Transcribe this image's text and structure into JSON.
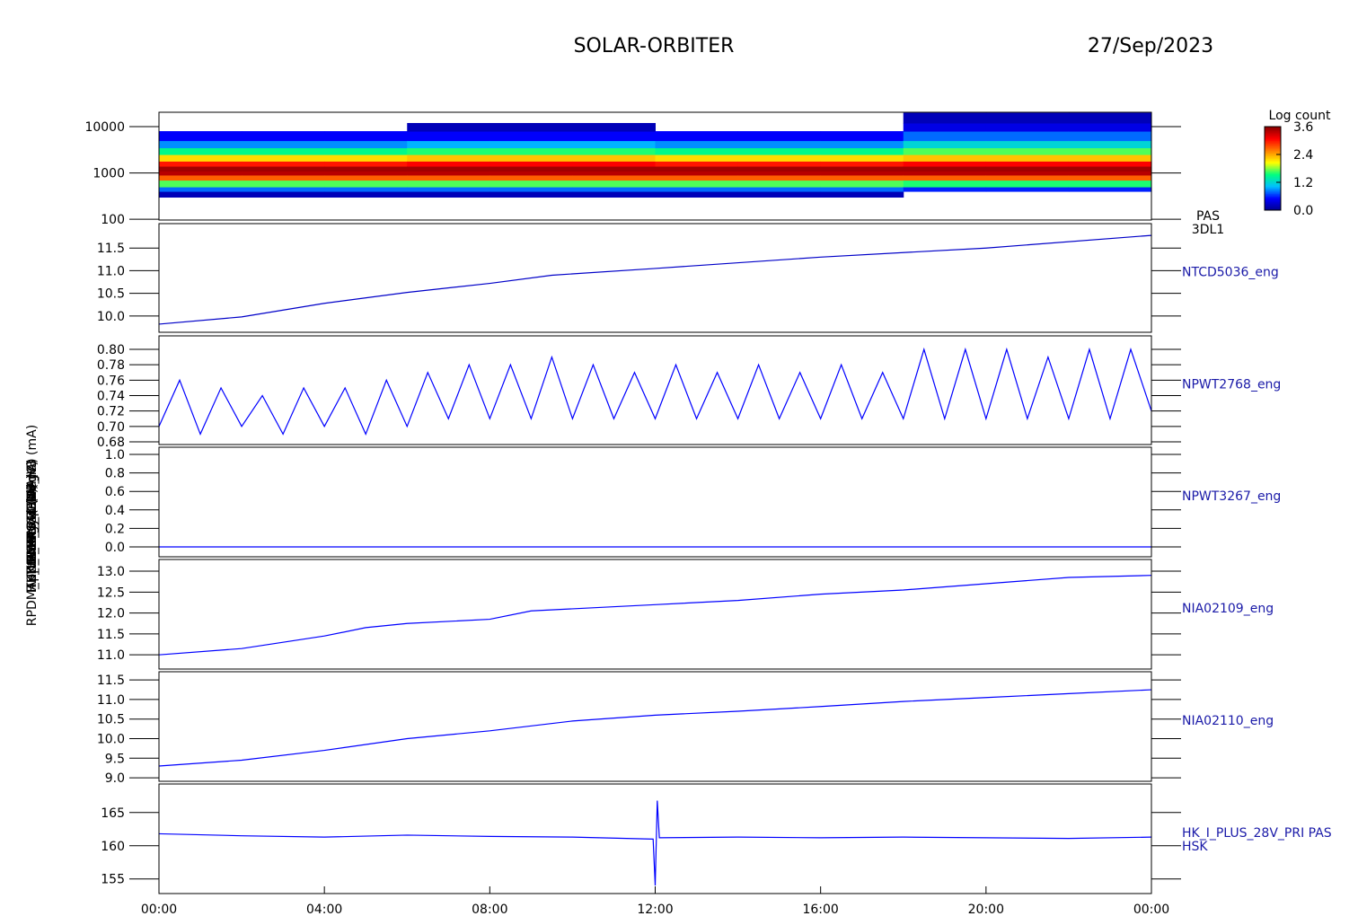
{
  "title": "SOLAR-ORBITER",
  "date": "27/Sep/2023",
  "chart_data": [
    {
      "type": "heatmap",
      "label": [
        "PAS",
        "3DL1"
      ],
      "ylabel": "Energy (eV)",
      "ylog": true,
      "xlim": [
        0,
        24
      ],
      "ylim": [
        96,
        20500
      ],
      "yticks": [
        100,
        1000,
        10000
      ],
      "x_edges": [
        0,
        2,
        4,
        6,
        8,
        10,
        12,
        14,
        16,
        18,
        20,
        22,
        24
      ],
      "y_edges": [
        300,
        400,
        500,
        700,
        900,
        1100,
        1400,
        1800,
        2500,
        3500,
        5000,
        8000,
        12000,
        20000
      ],
      "z": [
        [
          0.2,
          0.8,
          1.7,
          2.7,
          3.4,
          3.5,
          3.0,
          2.2,
          1.5,
          0.9,
          0.5,
          null,
          null
        ],
        [
          0.2,
          0.8,
          1.7,
          2.7,
          3.4,
          3.5,
          3.0,
          2.2,
          1.5,
          0.9,
          0.5,
          null,
          null
        ],
        [
          0.2,
          0.8,
          1.7,
          2.7,
          3.4,
          3.5,
          3.0,
          2.2,
          1.5,
          0.9,
          0.5,
          null,
          null
        ],
        [
          0.2,
          0.8,
          1.7,
          2.7,
          3.4,
          3.5,
          3.1,
          2.3,
          1.6,
          1.0,
          0.5,
          0.2,
          null
        ],
        [
          0.2,
          0.8,
          1.7,
          2.7,
          3.4,
          3.5,
          3.1,
          2.3,
          1.6,
          1.0,
          0.5,
          0.2,
          null
        ],
        [
          0.2,
          0.8,
          1.7,
          2.7,
          3.4,
          3.5,
          3.1,
          2.3,
          1.6,
          1.0,
          0.5,
          0.2,
          null
        ],
        [
          0.2,
          0.8,
          1.7,
          2.7,
          3.4,
          3.5,
          3.0,
          2.2,
          1.5,
          0.9,
          0.5,
          null,
          null
        ],
        [
          0.2,
          0.8,
          1.7,
          2.7,
          3.4,
          3.5,
          3.0,
          2.2,
          1.5,
          0.9,
          0.5,
          null,
          null
        ],
        [
          0.2,
          0.8,
          1.7,
          2.7,
          3.4,
          3.5,
          3.0,
          2.2,
          1.5,
          0.9,
          0.5,
          null,
          null
        ],
        [
          null,
          0.6,
          1.6,
          2.7,
          3.4,
          3.5,
          3.1,
          2.3,
          1.7,
          1.2,
          0.8,
          0.4,
          0.2
        ],
        [
          null,
          0.6,
          1.6,
          2.7,
          3.4,
          3.5,
          3.1,
          2.3,
          1.7,
          1.2,
          0.8,
          0.4,
          0.2
        ],
        [
          null,
          0.6,
          1.6,
          2.7,
          3.4,
          3.5,
          3.1,
          2.3,
          1.7,
          1.2,
          0.8,
          0.4,
          0.2
        ]
      ],
      "colorbar_title": "Log count",
      "clim": [
        0,
        3.6
      ],
      "cticks": [
        {
          "value": 0,
          "label": "0.0"
        },
        1.2,
        2.4,
        3.6
      ],
      "colorscale": [
        "#00008b",
        "#0000ff",
        "#00bfff",
        "#00ff80",
        "#ffff00",
        "#ff8000",
        "#ff0000",
        "#8b0000"
      ]
    },
    {
      "type": "line",
      "label": [
        "NTCD5036_eng"
      ],
      "ylabel": "Approx Temp (DegC)",
      "color": "#0000c8",
      "xlim": [
        0,
        24
      ],
      "ylim": [
        9.64,
        12.04
      ],
      "yticks": [
        {
          "value": 10,
          "label": "10.0"
        },
        10.5,
        {
          "value": 11,
          "label": "11.0"
        },
        11.5
      ],
      "x": [
        0,
        2,
        4,
        6,
        8,
        9.5,
        12,
        16,
        20,
        24
      ],
      "values": [
        9.82,
        9.98,
        10.28,
        10.52,
        10.72,
        10.9,
        11.05,
        11.3,
        11.5,
        11.78
      ]
    },
    {
      "type": "line",
      "label": [
        "NPWT2768_eng"
      ],
      "ylabel": "TSWA_EAS_TEMP (V)",
      "color": "#0000ff",
      "xlim": [
        0,
        24
      ],
      "ylim": [
        0.6765,
        0.8175
      ],
      "yticks": [
        0.68,
        {
          "value": 0.7,
          "label": "0.70"
        },
        0.72,
        0.74,
        0.76,
        0.78,
        {
          "value": 0.8,
          "label": "0.80"
        }
      ],
      "x": [
        0,
        0.5,
        1,
        1.5,
        2,
        2.5,
        3,
        3.5,
        4,
        4.5,
        5,
        5.5,
        6,
        6.5,
        7,
        7.5,
        8,
        8.5,
        9,
        9.5,
        10,
        10.5,
        11,
        11.5,
        12,
        12.5,
        13,
        13.5,
        14,
        14.5,
        15,
        15.5,
        16,
        16.5,
        17,
        17.5,
        18,
        18.5,
        19,
        19.5,
        20,
        20.5,
        21,
        21.5,
        22,
        22.5,
        23,
        23.5,
        24
      ],
      "values": [
        0.7,
        0.76,
        0.69,
        0.75,
        0.7,
        0.74,
        0.69,
        0.75,
        0.7,
        0.75,
        0.69,
        0.76,
        0.7,
        0.77,
        0.71,
        0.78,
        0.71,
        0.78,
        0.71,
        0.79,
        0.71,
        0.78,
        0.71,
        0.77,
        0.71,
        0.78,
        0.71,
        0.77,
        0.71,
        0.78,
        0.71,
        0.77,
        0.71,
        0.78,
        0.71,
        0.77,
        0.71,
        0.8,
        0.71,
        0.8,
        0.71,
        0.8,
        0.71,
        0.79,
        0.71,
        0.8,
        0.71,
        0.8,
        0.72
      ]
    },
    {
      "type": "line",
      "label": [
        "NPWT3267_eng"
      ],
      "ylabel": "SWA_CAL (V)",
      "color": "#0000ff",
      "xlim": [
        0,
        24
      ],
      "ylim": [
        -0.107,
        1.078
      ],
      "yticks": [
        {
          "value": 0,
          "label": "0.0"
        },
        0.2,
        0.4,
        0.6,
        0.8,
        {
          "value": 1,
          "label": "1.0"
        }
      ],
      "x": [
        0,
        24
      ],
      "values": [
        0,
        0
      ]
    },
    {
      "type": "line",
      "label": [
        "NIA02109_eng"
      ],
      "ylabel": "THERM_C4 (mA)",
      "color": "#0000ff",
      "xlim": [
        0,
        24
      ],
      "ylim": [
        10.66,
        13.28
      ],
      "yticks": [
        {
          "value": 11,
          "label": "11.0"
        },
        11.5,
        {
          "value": 12,
          "label": "12.0"
        },
        12.5,
        {
          "value": 13,
          "label": "13.0"
        }
      ],
      "x": [
        0,
        2,
        4,
        5,
        6,
        8,
        9,
        10,
        12,
        14,
        16,
        18,
        20,
        22,
        24
      ],
      "values": [
        11.0,
        11.15,
        11.45,
        11.65,
        11.75,
        11.85,
        12.05,
        12.1,
        12.2,
        12.3,
        12.45,
        12.55,
        12.7,
        12.85,
        12.9
      ]
    },
    {
      "type": "line",
      "label": [
        "NIA02110_eng"
      ],
      "ylabel": "HK_IMON_PCDU (mA)",
      "color": "#0000ff",
      "xlim": [
        0,
        24
      ],
      "ylim": [
        8.91,
        11.71
      ],
      "yticks": [
        {
          "value": 9,
          "label": "9.0"
        },
        9.5,
        {
          "value": 10,
          "label": "10.0"
        },
        10.5,
        {
          "value": 11,
          "label": "11.0"
        },
        11.5
      ],
      "x": [
        0,
        2,
        4,
        6,
        8,
        10,
        12,
        14,
        16,
        18,
        20,
        22,
        24
      ],
      "values": [
        9.3,
        9.45,
        9.7,
        10.0,
        10.2,
        10.45,
        10.6,
        10.7,
        10.82,
        10.95,
        11.05,
        11.15,
        11.25
      ]
    },
    {
      "type": "line",
      "label": [
        "HK_I_PLUS_28V_PRI PAS",
        "HSK"
      ],
      "ylabel": "RPDM_HK_IMON_PCDU_HB (mA)",
      "color": "#0000ff",
      "xlim": [
        0,
        24
      ],
      "ylim": [
        152.8,
        169.3
      ],
      "yticks": [
        155,
        160,
        165
      ],
      "x": [
        0,
        2,
        4,
        6,
        8,
        10,
        11.95,
        12,
        12.05,
        12.1,
        14,
        16,
        18,
        20,
        22,
        24
      ],
      "values": [
        161.8,
        161.5,
        161.3,
        161.6,
        161.4,
        161.3,
        161,
        154,
        166.8,
        161.2,
        161.3,
        161.2,
        161.3,
        161.2,
        161.1,
        161.3
      ],
      "xticks": [
        {
          "value": 0,
          "label": "00:00"
        },
        {
          "value": 4,
          "label": "04:00"
        },
        {
          "value": 8,
          "label": "08:00"
        },
        {
          "value": 12,
          "label": "12:00"
        },
        {
          "value": 16,
          "label": "16:00"
        },
        {
          "value": 20,
          "label": "20:00"
        },
        {
          "value": 24,
          "label": "00:00"
        }
      ]
    }
  ]
}
